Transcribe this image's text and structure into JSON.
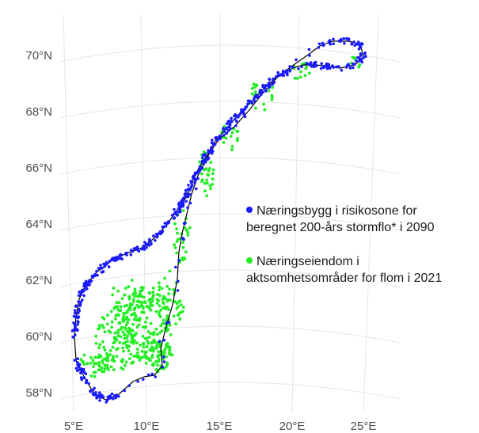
{
  "map": {
    "latitude_labels": [
      "70°N",
      "68°N",
      "66°N",
      "64°N",
      "62°N",
      "60°N",
      "58°N"
    ],
    "longitude_labels": [
      "5°E",
      "10°E",
      "15°E",
      "20°E",
      "25°E"
    ],
    "graticule_color": "#e6e6e6",
    "coastline_color": "#000000"
  },
  "legend": {
    "items": [
      {
        "line1": "Næringsbygg i risikosone for",
        "line2": "beregnet 200-års stormflo* i 2090",
        "color": "#1a1aff",
        "icon": "blue-dot"
      },
      {
        "line1": "Næringseiendom i",
        "line2": "aktsomhetsområder for flom i 2021",
        "color": "#22ee22",
        "icon": "green-dot"
      }
    ]
  }
}
